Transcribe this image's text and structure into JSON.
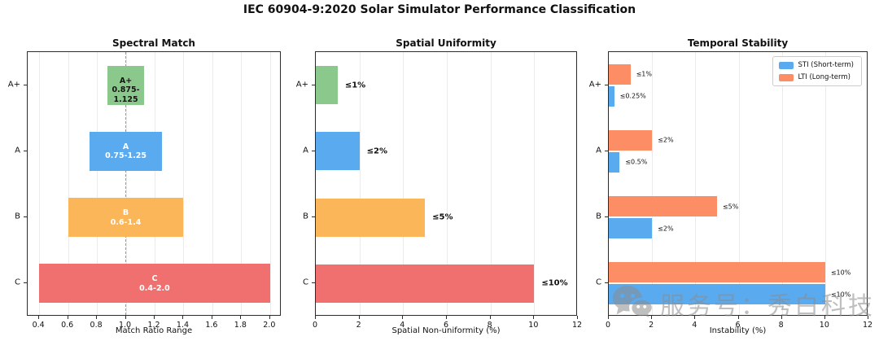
{
  "figure_title": "IEC 60904-9:2020 Solar Simulator Performance Classification",
  "classes": [
    "A+",
    "A",
    "B",
    "C"
  ],
  "class_colors": [
    "#8BC88B",
    "#5AAAF0",
    "#FBB65A",
    "#F07070"
  ],
  "chart_data": [
    {
      "type": "bar",
      "subtype": "range",
      "title": "Spectral Match",
      "xlabel": "Match Ratio Range",
      "categories": [
        "A+",
        "A",
        "B",
        "C"
      ],
      "ranges": [
        [
          0.875,
          1.125
        ],
        [
          0.75,
          1.25
        ],
        [
          0.6,
          1.4
        ],
        [
          0.4,
          2.0
        ]
      ],
      "bar_labels": [
        [
          "A+",
          "0.875-1.125"
        ],
        [
          "A",
          "0.75-1.25"
        ],
        [
          "B",
          "0.6-1.4"
        ],
        [
          "C",
          "0.4-2.0"
        ]
      ],
      "bar_label_colors": [
        "#151515",
        "#ffffff",
        "#ffffff",
        "#ffffff"
      ],
      "bar_colors": [
        "#8BC88B",
        "#5AAAF0",
        "#FBB65A",
        "#F07070"
      ],
      "xlim": [
        0.32,
        2.08
      ],
      "xtick_values": [
        0.4,
        0.6,
        0.8,
        1.0,
        1.2,
        1.4,
        1.6,
        1.8,
        2.0
      ],
      "xtick_labels": [
        "0.4",
        "0.6",
        "0.8",
        "1.0",
        "1.2",
        "1.4",
        "1.6",
        "1.8",
        "2.0"
      ],
      "reference_line": 1.0,
      "grid": true,
      "legend_position": "none"
    },
    {
      "type": "bar",
      "subtype": "simple",
      "title": "Spatial Uniformity",
      "xlabel": "Spatial Non-uniformity (%)",
      "categories": [
        "A+",
        "A",
        "B",
        "C"
      ],
      "values": [
        1,
        2,
        5,
        10
      ],
      "value_labels": [
        "≤1%",
        "≤2%",
        "≤5%",
        "≤10%"
      ],
      "bar_colors": [
        "#8BC88B",
        "#5AAAF0",
        "#FBB65A",
        "#F07070"
      ],
      "xlim": [
        0,
        12
      ],
      "xtick_values": [
        0,
        2,
        4,
        6,
        8,
        10,
        12
      ],
      "xtick_labels": [
        "0",
        "2",
        "4",
        "6",
        "8",
        "10",
        "12"
      ],
      "grid": true,
      "legend_position": "none"
    },
    {
      "type": "bar",
      "subtype": "grouped",
      "title": "Temporal Stability",
      "xlabel": "Instability (%)",
      "categories": [
        "A+",
        "A",
        "B",
        "C"
      ],
      "series": [
        {
          "name": "STI (Short-term)",
          "color": "#5AAAF0",
          "values": [
            0.25,
            0.5,
            2,
            10
          ],
          "value_labels": [
            "≤0.25%",
            "≤0.5%",
            "≤2%",
            "≤10%"
          ]
        },
        {
          "name": "LTI (Long-term)",
          "color": "#FC8D65",
          "values": [
            1,
            2,
            5,
            10
          ],
          "value_labels": [
            "≤1%",
            "≤2%",
            "≤5%",
            "≤10%"
          ]
        }
      ],
      "xlim": [
        0,
        12
      ],
      "xtick_values": [
        0,
        2,
        4,
        6,
        8,
        10,
        12
      ],
      "xtick_labels": [
        "0",
        "2",
        "4",
        "6",
        "8",
        "10",
        "12"
      ],
      "grid": true,
      "legend_position": "upper right"
    }
  ],
  "watermark": {
    "icon": "wechat-icon",
    "text": "服务号：秀白科技"
  }
}
